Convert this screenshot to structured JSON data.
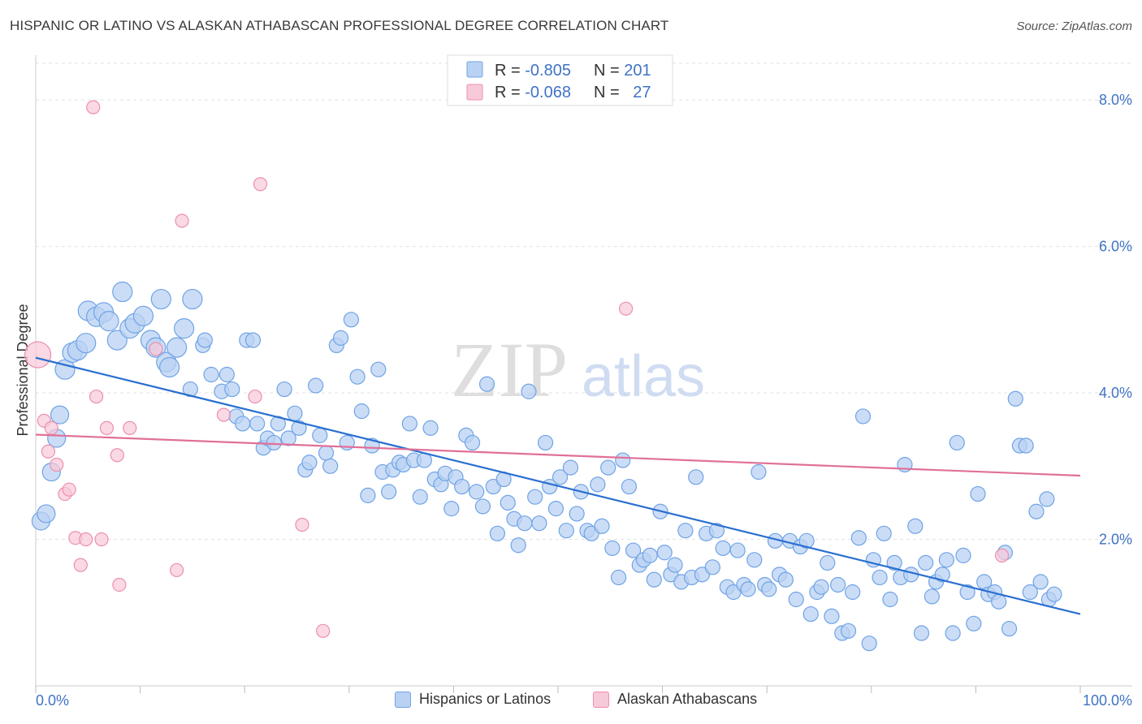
{
  "header": {
    "title": "HISPANIC OR LATINO VS ALASKAN ATHABASCAN PROFESSIONAL DEGREE CORRELATION CHART",
    "source": "Source: ZipAtlas.com"
  },
  "watermark": {
    "zip": "ZIP",
    "atlas": "atlas"
  },
  "legend_top": [
    {
      "r_label": "R = ",
      "r_value": "-0.805",
      "n_label": "N = ",
      "n_value": "201",
      "color": "#6fa3e6"
    },
    {
      "r_label": "R = ",
      "r_value": "-0.068",
      "n_label": "N = ",
      "n_value": "27",
      "color": "#ec8fae"
    }
  ],
  "legend_bottom": [
    {
      "label": "Hispanics or Latinos",
      "color": "#6fa3e6",
      "fill": "#b9d2f3"
    },
    {
      "label": "Alaskan Athabascans",
      "color": "#ec8fae",
      "fill": "#f8c9d8"
    }
  ],
  "colors": {
    "blue_stroke": "#6fa3e6",
    "blue_fill": "#b9d2f3",
    "blue_line": "#2a6fd0",
    "pink_stroke": "#ec8fae",
    "pink_fill": "#f8c9d8",
    "pink_line": "#e07098",
    "axis_text": "#3f73c6",
    "grid": "#e2e2e2"
  },
  "chart_data": {
    "type": "scatter",
    "title": "HISPANIC OR LATINO VS ALASKAN ATHABASCAN PROFESSIONAL DEGREE CORRELATION CHART",
    "ylabel": "Professional Degree",
    "xlabel": "",
    "xlim": [
      0,
      100
    ],
    "ylim": [
      0,
      8.5
    ],
    "x_tick_labels": [
      {
        "x": 0,
        "label": "0.0%"
      },
      {
        "x": 100,
        "label": "100.0%"
      }
    ],
    "y_ticks": [
      {
        "y": 2,
        "label": "2.0%"
      },
      {
        "y": 4,
        "label": "4.0%"
      },
      {
        "y": 6,
        "label": "6.0%"
      },
      {
        "y": 8,
        "label": "8.0%"
      }
    ],
    "grid": true,
    "legend_position": "top-center",
    "series": [
      {
        "name": "Hispanics or Latinos",
        "color": "#6fa3e6",
        "trend": {
          "x": [
            0,
            100
          ],
          "y": [
            4.48,
            0.98
          ]
        },
        "points": [
          [
            0.5,
            2.25
          ],
          [
            1,
            2.35
          ],
          [
            1.5,
            2.92
          ],
          [
            2,
            3.38
          ],
          [
            2.3,
            3.7
          ],
          [
            2.8,
            4.32
          ],
          [
            3.5,
            4.55
          ],
          [
            4,
            4.58
          ],
          [
            4.8,
            4.68
          ],
          [
            5,
            5.12
          ],
          [
            5.8,
            5.04
          ],
          [
            6.5,
            5.1
          ],
          [
            7,
            4.98
          ],
          [
            7.8,
            4.72
          ],
          [
            8.3,
            5.38
          ],
          [
            9,
            4.88
          ],
          [
            9.5,
            4.95
          ],
          [
            10.3,
            5.05
          ],
          [
            11,
            4.72
          ],
          [
            11.5,
            4.62
          ],
          [
            12,
            5.28
          ],
          [
            12.5,
            4.42
          ],
          [
            12.8,
            4.35
          ],
          [
            13.5,
            4.62
          ],
          [
            14.2,
            4.88
          ],
          [
            15,
            5.28
          ],
          [
            14.8,
            4.05
          ],
          [
            16,
            4.65
          ],
          [
            16.2,
            4.72
          ],
          [
            16.8,
            4.25
          ],
          [
            17.8,
            4.02
          ],
          [
            18.3,
            4.25
          ],
          [
            18.8,
            4.05
          ],
          [
            19.2,
            3.68
          ],
          [
            19.8,
            3.58
          ],
          [
            20.2,
            4.72
          ],
          [
            20.8,
            4.72
          ],
          [
            21.2,
            3.58
          ],
          [
            21.8,
            3.25
          ],
          [
            22.2,
            3.38
          ],
          [
            22.8,
            3.32
          ],
          [
            23.2,
            3.58
          ],
          [
            23.8,
            4.05
          ],
          [
            24.2,
            3.38
          ],
          [
            24.8,
            3.72
          ],
          [
            25.2,
            3.52
          ],
          [
            25.8,
            2.95
          ],
          [
            26.2,
            3.05
          ],
          [
            26.8,
            4.1
          ],
          [
            27.2,
            3.42
          ],
          [
            27.8,
            3.18
          ],
          [
            28.2,
            3.0
          ],
          [
            28.8,
            4.65
          ],
          [
            29.2,
            4.75
          ],
          [
            29.8,
            3.32
          ],
          [
            30.2,
            5.0
          ],
          [
            30.8,
            4.22
          ],
          [
            31.2,
            3.75
          ],
          [
            31.8,
            2.6
          ],
          [
            32.2,
            3.28
          ],
          [
            32.8,
            4.32
          ],
          [
            33.2,
            2.92
          ],
          [
            33.8,
            2.65
          ],
          [
            34.2,
            2.95
          ],
          [
            34.8,
            3.05
          ],
          [
            35.2,
            3.02
          ],
          [
            35.8,
            3.58
          ],
          [
            36.2,
            3.08
          ],
          [
            36.8,
            2.58
          ],
          [
            37.2,
            3.08
          ],
          [
            37.8,
            3.52
          ],
          [
            38.2,
            2.82
          ],
          [
            38.8,
            2.75
          ],
          [
            39.2,
            2.9
          ],
          [
            39.8,
            2.42
          ],
          [
            40.2,
            2.85
          ],
          [
            40.8,
            2.72
          ],
          [
            41.2,
            3.42
          ],
          [
            41.8,
            3.32
          ],
          [
            42.2,
            2.65
          ],
          [
            42.8,
            2.45
          ],
          [
            43.2,
            4.12
          ],
          [
            43.8,
            2.72
          ],
          [
            44.2,
            2.08
          ],
          [
            44.8,
            2.82
          ],
          [
            45.2,
            2.5
          ],
          [
            45.8,
            2.28
          ],
          [
            46.2,
            1.92
          ],
          [
            46.8,
            2.22
          ],
          [
            47.2,
            4.02
          ],
          [
            47.8,
            2.58
          ],
          [
            48.2,
            2.22
          ],
          [
            48.8,
            3.32
          ],
          [
            49.2,
            2.72
          ],
          [
            49.8,
            2.42
          ],
          [
            50.2,
            2.85
          ],
          [
            50.8,
            2.12
          ],
          [
            51.2,
            2.98
          ],
          [
            51.8,
            2.35
          ],
          [
            52.2,
            2.65
          ],
          [
            52.8,
            2.12
          ],
          [
            53.2,
            2.08
          ],
          [
            53.8,
            2.75
          ],
          [
            54.2,
            2.18
          ],
          [
            54.8,
            2.98
          ],
          [
            55.2,
            1.88
          ],
          [
            55.8,
            1.48
          ],
          [
            56.2,
            3.08
          ],
          [
            56.8,
            2.72
          ],
          [
            57.2,
            1.85
          ],
          [
            57.8,
            1.65
          ],
          [
            58.2,
            1.72
          ],
          [
            58.8,
            1.78
          ],
          [
            59.2,
            1.45
          ],
          [
            59.8,
            2.38
          ],
          [
            60.2,
            1.82
          ],
          [
            60.8,
            1.52
          ],
          [
            61.2,
            1.65
          ],
          [
            61.8,
            1.42
          ],
          [
            62.2,
            2.12
          ],
          [
            62.8,
            1.48
          ],
          [
            63.2,
            2.85
          ],
          [
            63.8,
            1.52
          ],
          [
            64.2,
            2.08
          ],
          [
            64.8,
            1.62
          ],
          [
            65.2,
            2.12
          ],
          [
            65.8,
            1.88
          ],
          [
            66.2,
            1.35
          ],
          [
            66.8,
            1.28
          ],
          [
            67.2,
            1.85
          ],
          [
            67.8,
            1.38
          ],
          [
            68.2,
            1.32
          ],
          [
            68.8,
            1.72
          ],
          [
            69.2,
            2.92
          ],
          [
            69.8,
            1.38
          ],
          [
            70.2,
            1.32
          ],
          [
            70.8,
            1.98
          ],
          [
            71.2,
            1.52
          ],
          [
            71.8,
            1.45
          ],
          [
            72.2,
            1.98
          ],
          [
            72.8,
            1.18
          ],
          [
            73.2,
            1.9
          ],
          [
            73.8,
            1.98
          ],
          [
            74.2,
            0.98
          ],
          [
            74.8,
            1.28
          ],
          [
            75.2,
            1.35
          ],
          [
            75.8,
            1.68
          ],
          [
            76.2,
            0.95
          ],
          [
            76.8,
            1.38
          ],
          [
            77.2,
            0.72
          ],
          [
            77.8,
            0.75
          ],
          [
            78.2,
            1.28
          ],
          [
            78.8,
            2.02
          ],
          [
            79.2,
            3.68
          ],
          [
            79.8,
            0.58
          ],
          [
            80.2,
            1.72
          ],
          [
            80.8,
            1.48
          ],
          [
            81.2,
            2.08
          ],
          [
            81.8,
            1.18
          ],
          [
            82.2,
            1.68
          ],
          [
            82.8,
            1.48
          ],
          [
            83.2,
            3.02
          ],
          [
            83.8,
            1.52
          ],
          [
            84.2,
            2.18
          ],
          [
            84.8,
            0.72
          ],
          [
            85.2,
            1.68
          ],
          [
            85.8,
            1.22
          ],
          [
            86.2,
            1.42
          ],
          [
            86.8,
            1.52
          ],
          [
            87.2,
            1.72
          ],
          [
            87.8,
            0.72
          ],
          [
            88.2,
            3.32
          ],
          [
            88.8,
            1.78
          ],
          [
            89.2,
            1.28
          ],
          [
            89.8,
            0.85
          ],
          [
            90.2,
            2.62
          ],
          [
            90.8,
            1.42
          ],
          [
            91.2,
            1.25
          ],
          [
            91.8,
            1.28
          ],
          [
            92.2,
            1.15
          ],
          [
            92.8,
            1.82
          ],
          [
            93.2,
            0.78
          ],
          [
            93.8,
            3.92
          ],
          [
            94.2,
            3.28
          ],
          [
            94.8,
            3.28
          ],
          [
            95.2,
            1.28
          ],
          [
            95.8,
            2.38
          ],
          [
            96.2,
            1.42
          ],
          [
            96.8,
            2.55
          ],
          [
            97.0,
            1.18
          ],
          [
            97.5,
            1.25
          ]
        ]
      },
      {
        "name": "Alaskan Athabascans",
        "color": "#ec8fae",
        "trend": {
          "x": [
            0,
            100
          ],
          "y": [
            3.43,
            2.87
          ]
        },
        "points": [
          [
            0.2,
            4.52
          ],
          [
            0.8,
            3.62
          ],
          [
            1.2,
            3.2
          ],
          [
            1.5,
            3.52
          ],
          [
            2,
            3.02
          ],
          [
            2.8,
            2.62
          ],
          [
            3.2,
            2.68
          ],
          [
            3.8,
            2.02
          ],
          [
            4.3,
            1.65
          ],
          [
            4.8,
            2.0
          ],
          [
            5.5,
            7.9
          ],
          [
            5.8,
            3.95
          ],
          [
            6.3,
            2.0
          ],
          [
            6.8,
            3.52
          ],
          [
            7.8,
            3.15
          ],
          [
            8,
            1.38
          ],
          [
            9,
            3.52
          ],
          [
            11.5,
            4.6
          ],
          [
            13.5,
            1.58
          ],
          [
            14,
            6.35
          ],
          [
            18,
            3.7
          ],
          [
            21,
            3.95
          ],
          [
            21.5,
            6.85
          ],
          [
            25.5,
            2.2
          ],
          [
            27.5,
            0.75
          ],
          [
            56.5,
            5.15
          ],
          [
            92.5,
            1.78
          ]
        ]
      }
    ]
  }
}
